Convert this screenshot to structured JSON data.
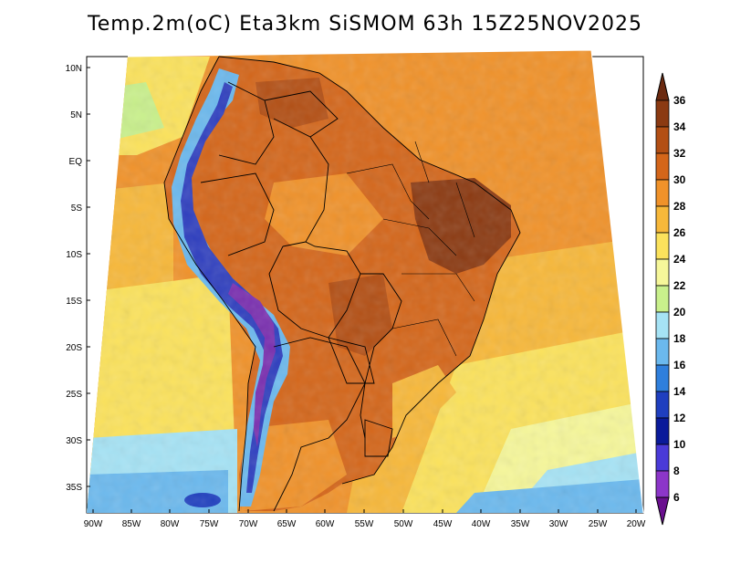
{
  "title": "Temp.2m(oC) Eta3km SiSMOM 63h 15Z25NOV2025",
  "lat_labels": [
    "10N",
    "5N",
    "EQ",
    "5S",
    "10S",
    "15S",
    "20S",
    "25S",
    "30S",
    "35S"
  ],
  "lon_labels": [
    "90W",
    "85W",
    "80W",
    "75W",
    "70W",
    "65W",
    "60W",
    "55W",
    "50W",
    "45W",
    "40W",
    "35W",
    "30W",
    "25W",
    "20W"
  ],
  "colorbar": {
    "labels": [
      "36",
      "34",
      "32",
      "30",
      "28",
      "26",
      "24",
      "22",
      "20",
      "18",
      "16",
      "14",
      "12",
      "10",
      "8",
      "6"
    ],
    "colors": [
      "#6b2a10",
      "#8b3a12",
      "#b34f14",
      "#d4661a",
      "#f0922a",
      "#f7b83a",
      "#fbe25c",
      "#f6f79a",
      "#c9f08c",
      "#a6e3f5",
      "#6bb9ee",
      "#2f7fdc",
      "#1f3fbf",
      "#0a1a9a",
      "#4a3ad8",
      "#8c36c9",
      "#6a0f8f"
    ]
  },
  "map_colors": {
    "ocean_warm": "#f0922a",
    "ocean_mid": "#f7b83a",
    "ocean_cool": "#fbe25c",
    "ocean_cold": "#a6e3f5",
    "land_hot": "#d4661a",
    "land_very_hot": "#8b3a12",
    "andes_cold": "#2f3fbf",
    "andes_purple": "#7a2fb0"
  }
}
